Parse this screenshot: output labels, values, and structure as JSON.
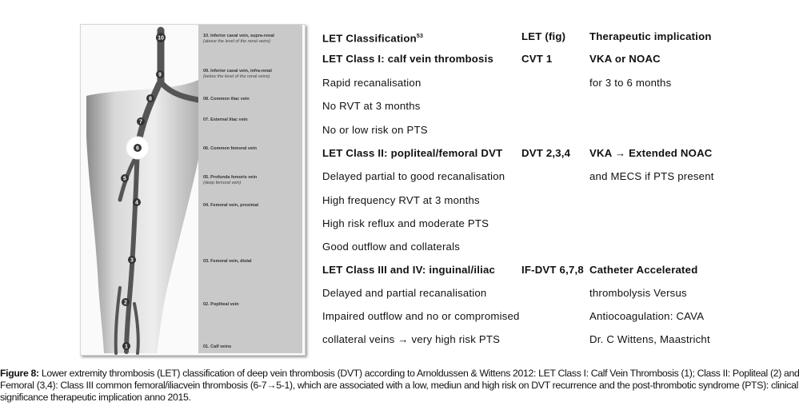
{
  "vein_labels": [
    {
      "num": "10",
      "name": "10. Inferior caval vein, supra-renal",
      "note": "(above the level of the renal veins)"
    },
    {
      "num": "9",
      "name": "09. Inferior caval vein, infra-renal",
      "note": "(below the level of the renal veins)"
    },
    {
      "num": "8",
      "name": "08. Common iliac vein",
      "note": ""
    },
    {
      "num": "7",
      "name": "07. External iliac vein",
      "note": ""
    },
    {
      "num": "6",
      "name": "06. Common femoral vein",
      "note": ""
    },
    {
      "num": "5",
      "name": "05. Profunda femoris vein",
      "note": "(deep femoral vein)"
    },
    {
      "num": "4",
      "name": "04. Femoral vein, proximal",
      "note": ""
    },
    {
      "num": "3",
      "name": "03. Femoral vein, distal",
      "note": ""
    },
    {
      "num": "2",
      "name": "02. Popliteal vein",
      "note": ""
    },
    {
      "num": "1",
      "name": "01. Calf veins",
      "note": ""
    }
  ],
  "table": {
    "header": {
      "classification": "LET Classification",
      "ref": "53",
      "fig": "LET (fig)",
      "therapy": "Therapeutic implication"
    },
    "rows": [
      {
        "c1": "LET Class I: calf vein thrombosis",
        "c2": "CVT 1",
        "c3": "VKA or NOAC",
        "bold": true
      },
      {
        "c1": "Rapid recanalisation",
        "c2": "",
        "c3": "for 3 to 6 months",
        "bold": false
      },
      {
        "c1": "No RVT at 3 months",
        "c2": "",
        "c3": "",
        "bold": false
      },
      {
        "c1": "No or low risk on PTS",
        "c2": "",
        "c3": "",
        "bold": false
      },
      {
        "c1": "LET Class II: popliteal/femoral  DVT",
        "c2": "DVT 2,3,4",
        "c3": "VKA → Extended NOAC",
        "bold": true
      },
      {
        "c1": "Delayed  partial to good recanalisation",
        "c2": "",
        "c3": "and MECS if PTS present",
        "bold": false
      },
      {
        "c1": "High frequency  RVT at 3 months",
        "c2": "",
        "c3": "",
        "bold": false
      },
      {
        "c1": "High risk reflux and moderate  PTS",
        "c2": "",
        "c3": "",
        "bold": false
      },
      {
        "c1": "Good outflow and collaterals",
        "c2": "",
        "c3": "",
        "bold": false
      },
      {
        "c1": "LET Class III and IV: inguinal/iliac",
        "c2": "IF-DVT  6,7,8",
        "c3": "Catheter  Accelerated",
        "bold": true
      },
      {
        "c1": "Delayed  and partial  recanalisation",
        "c2": "",
        "c3": "thrombolysis Versus",
        "bold": false
      },
      {
        "c1": "Impaired  outflow and no or compromised",
        "c2": "",
        "c3": "Antiocoagulation:  CAVA",
        "bold": false
      },
      {
        "c1": "collateral  veins  → very high risk PTS",
        "c2": "",
        "c3": "Dr. C Wittens,  Maastricht",
        "bold": false
      }
    ]
  },
  "caption": {
    "label": "Figure 8:",
    "text": " Lower extremity thrombosis (LET) classification of deep vein thrombosis (DVT) according to Arnoldussen & Wittens 2012: LET Class I: Calf Vein Thrombosis (1); Class II: Popliteal (2) and Femoral (3,4): Class III common femoral/iliacvein thrombosis (6-7→5-1), which are associated with a low, mediun and high risk on DVT recurrence and the post-thrombotic syndrome (PTS): clinical significance therapeutic implication anno 2015."
  }
}
